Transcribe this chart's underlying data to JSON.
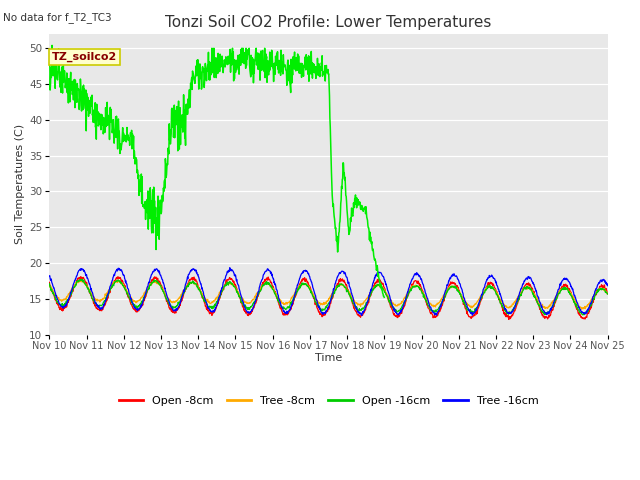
{
  "title": "Tonzi Soil CO2 Profile: Lower Temperatures",
  "top_left_text": "No data for f_T2_TC3",
  "ylabel": "Soil Temperatures (C)",
  "xlabel": "Time",
  "ylim": [
    10,
    52
  ],
  "yticks": [
    10,
    15,
    20,
    25,
    30,
    35,
    40,
    45,
    50
  ],
  "plot_bg_color": "#e8e8e8",
  "annotation_label": "TZ_soilco2",
  "annotation_box_facecolor": "#ffffcc",
  "annotation_box_edgecolor": "#cccc00",
  "legend_entries": [
    "Open -8cm",
    "Tree -8cm",
    "Open -16cm",
    "Tree -16cm"
  ],
  "legend_colors": [
    "#ff0000",
    "#ffaa00",
    "#00cc00",
    "#0000ff"
  ],
  "line_colors": {
    "open8": "#ff0000",
    "tree8": "#ffaa00",
    "open16": "#00cc00",
    "tree16": "#0000ff",
    "spike": "#00ee00"
  },
  "title_fontsize": 11,
  "axis_label_fontsize": 8,
  "tick_fontsize": 7,
  "legend_fontsize": 8
}
